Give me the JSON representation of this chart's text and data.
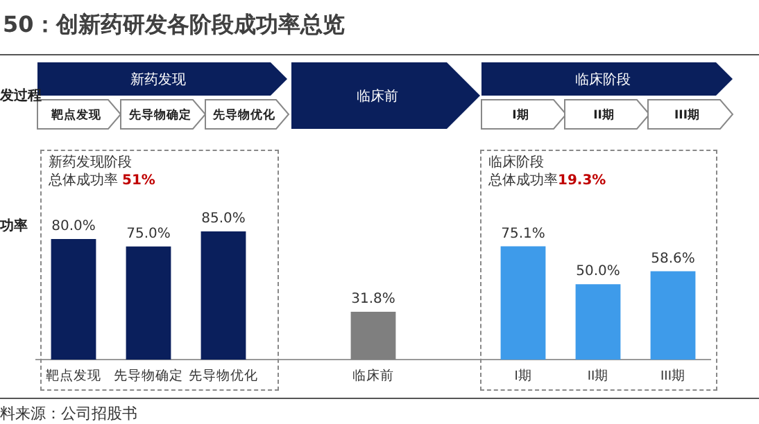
{
  "chart_data": {
    "type": "bar",
    "title": "50：创新药研发各阶段成功率总览",
    "categories": [
      "靶点发现",
      "先导物确定",
      "先导物优化",
      null,
      "临床前",
      null,
      "I期",
      "II期",
      "III期"
    ],
    "values": [
      80.0,
      75.0,
      85.0,
      null,
      31.8,
      null,
      75.1,
      50.0,
      58.6
    ],
    "colors": [
      "#0a1f5c",
      "#0a1f5c",
      "#0a1f5c",
      null,
      "#7f7f7f",
      null,
      "#3e9bea",
      "#3e9bea",
      "#3e9bea"
    ],
    "value_labels": [
      "80.0%",
      "75.0%",
      "85.0%",
      null,
      "31.8%",
      null,
      "75.1%",
      "50.0%",
      "58.6%"
    ],
    "grid": false,
    "legend": false,
    "tick_labels": "x",
    "annotations": [
      "发过程",
      "新药发现",
      "靶点发现",
      "先导物确定",
      "先导物优化",
      "临床前",
      "临床阶段",
      "I期",
      "II期",
      "III期",
      "功率",
      "新药发现阶段",
      "总体成功率",
      "51%",
      "临床阶段",
      "总体成功率",
      "19.3%",
      "料来源：公司招股书"
    ]
  }
}
